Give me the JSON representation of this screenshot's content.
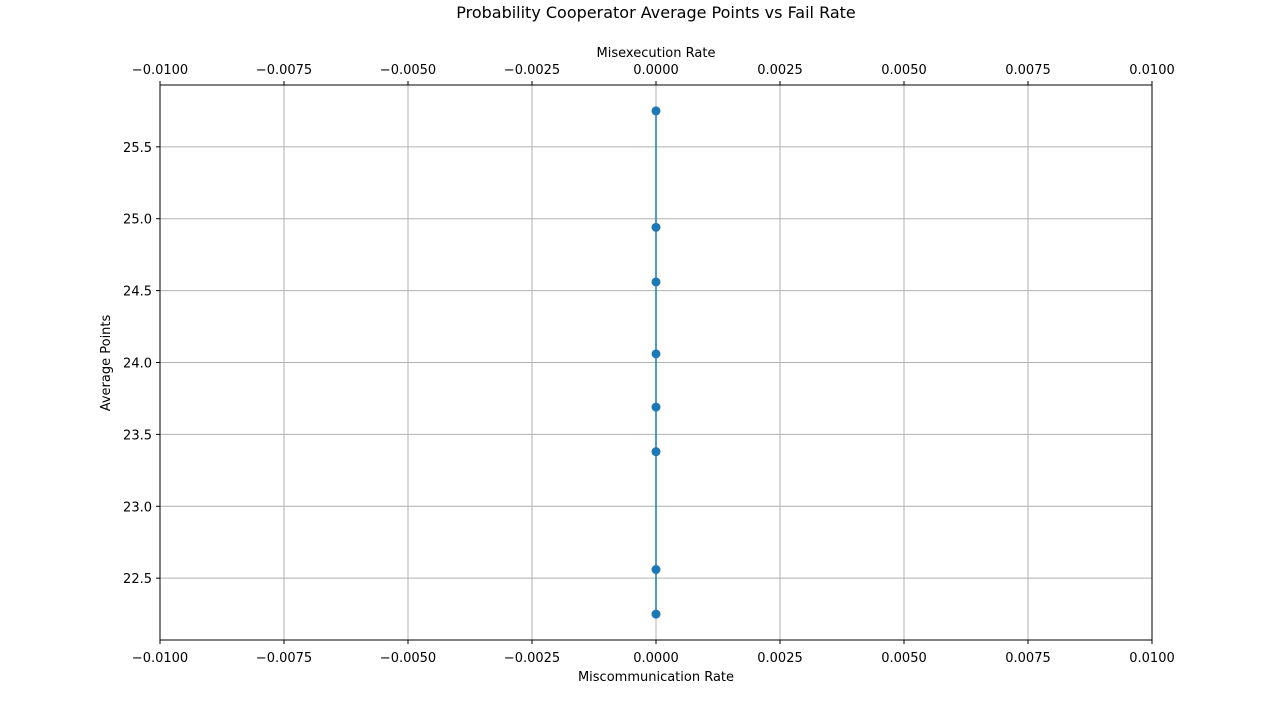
{
  "chart_data": {
    "type": "line",
    "title": "Probability Cooperator Average Points vs Fail Rate",
    "xlabel": "Miscommunication Rate",
    "x2label": "Misexecution Rate",
    "ylabel": "Average Points",
    "xlim": [
      -0.01,
      0.01
    ],
    "ylim": [
      22.07,
      25.93
    ],
    "xticks": [
      -0.01,
      -0.0075,
      -0.005,
      -0.0025,
      0.0,
      0.0025,
      0.005,
      0.0075,
      0.01
    ],
    "xtick_labels": [
      "−0.0100",
      "−0.0075",
      "−0.0050",
      "−0.0025",
      "0.0000",
      "0.0025",
      "0.0050",
      "0.0075",
      "0.0100"
    ],
    "yticks": [
      22.5,
      23.0,
      23.5,
      24.0,
      24.5,
      25.0,
      25.5
    ],
    "ytick_labels": [
      "22.5",
      "23.0",
      "23.5",
      "24.0",
      "24.5",
      "25.0",
      "25.5"
    ],
    "grid": true,
    "series": [
      {
        "color": "#1f77b4",
        "marker": "circle",
        "x": [
          0.0,
          0.0,
          0.0,
          0.0,
          0.0,
          0.0,
          0.0,
          0.0
        ],
        "y": [
          25.75,
          24.94,
          24.56,
          24.06,
          23.69,
          23.38,
          22.56,
          22.25
        ]
      }
    ]
  }
}
